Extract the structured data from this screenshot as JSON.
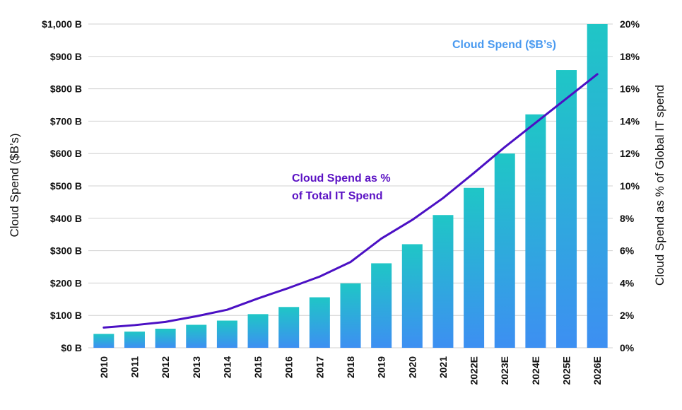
{
  "chart_data": {
    "type": "bar",
    "categories": [
      "2010",
      "2011",
      "2012",
      "2013",
      "2014",
      "2015",
      "2016",
      "2017",
      "2018",
      "2019",
      "2020",
      "2021",
      "2022E",
      "2023E",
      "2024E",
      "2025E",
      "2026E"
    ],
    "series": [
      {
        "name": "Cloud Spend ($B’s)",
        "type": "bar",
        "axis": "left",
        "values": [
          43,
          50,
          59,
          71,
          84,
          104,
          126,
          156,
          199,
          261,
          320,
          410,
          494,
          600,
          721,
          858,
          1000
        ]
      },
      {
        "name": "Cloud Spend as % of Total IT Spend",
        "type": "line",
        "axis": "right",
        "values": [
          1.25,
          1.4,
          1.6,
          1.95,
          2.35,
          3.05,
          3.7,
          4.4,
          5.3,
          6.75,
          7.9,
          9.25,
          10.8,
          12.4,
          13.9,
          15.4,
          16.9
        ]
      }
    ],
    "y_left": {
      "label": "Cloud Spend ($B’s)",
      "ticks": [
        "$0 B",
        "$100 B",
        "$200 B",
        "$300 B",
        "$400 B",
        "$500 B",
        "$600 B",
        "$700 B",
        "$800 B",
        "$900 B",
        "$1,000 B"
      ],
      "range": [
        0,
        1000
      ]
    },
    "y_right": {
      "label": "Cloud Spend as % of Global IT spend",
      "ticks": [
        "0%",
        "2%",
        "4%",
        "6%",
        "8%",
        "10%",
        "12%",
        "14%",
        "16%",
        "18%",
        "20%"
      ],
      "range": [
        0,
        20
      ]
    },
    "annotations": {
      "bars": "Cloud Spend ($B’s)",
      "line_1": "Cloud Spend as %",
      "line_2": "of Total IT Spend"
    },
    "grid": true,
    "legend": "none"
  },
  "colors": {
    "bar_top": "#1fc6c6",
    "bar_bottom": "#3d8ff2",
    "line": "#4b10c4",
    "grid": "#d0d0d0",
    "annotation_bars": "#4a9af0",
    "annotation_line": "#5b12c4"
  }
}
